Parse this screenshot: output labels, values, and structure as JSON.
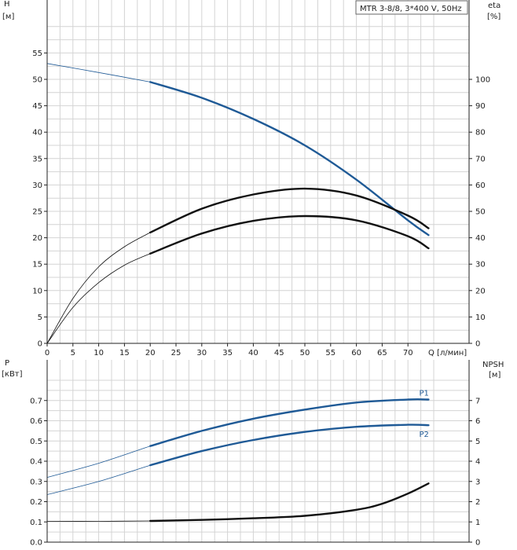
{
  "chart_data": [
    {
      "type": "line",
      "panel": "head-efficiency",
      "legend_text": "MTR 3-8/8, 3*400 V, 50Hz",
      "left_axis": {
        "label_line1": "H",
        "label_line2": "[м]",
        "ylim": [
          0,
          60
        ],
        "ticks": [
          0,
          5,
          10,
          15,
          20,
          25,
          30,
          35,
          40,
          45,
          50,
          55
        ]
      },
      "right_axis": {
        "label_line1": "eta",
        "label_line2": "[%]",
        "ylim": [
          0,
          120
        ],
        "ticks": [
          0,
          10,
          20,
          30,
          40,
          50,
          60,
          70,
          80,
          90,
          100
        ]
      },
      "x_axis": {
        "label": "Q [л/мин]",
        "xlim": [
          0,
          75
        ],
        "ticks": [
          0,
          5,
          10,
          15,
          20,
          25,
          30,
          35,
          40,
          45,
          50,
          55,
          60,
          65,
          70
        ]
      },
      "grid": true,
      "series": [
        {
          "name": "H",
          "axis": "left",
          "color": "#1f5a96",
          "thick_from": 20,
          "points": [
            [
              0,
              53
            ],
            [
              10,
              51.3
            ],
            [
              20,
              49.5
            ],
            [
              30,
              46.5
            ],
            [
              40,
              42.5
            ],
            [
              50,
              37.5
            ],
            [
              60,
              31
            ],
            [
              70,
              23.3
            ],
            [
              74,
              20.5
            ]
          ]
        },
        {
          "name": "eta",
          "axis": "left",
          "color": "#111111",
          "thick_from": 20,
          "points": [
            [
              0,
              0
            ],
            [
              5,
              8.5
            ],
            [
              10,
              14.5
            ],
            [
              15,
              18.3
            ],
            [
              20,
              21
            ],
            [
              30,
              25.5
            ],
            [
              40,
              28.2
            ],
            [
              50,
              29.3
            ],
            [
              60,
              28
            ],
            [
              70,
              24.2
            ],
            [
              74,
              21.8
            ]
          ]
        },
        {
          "name": "eta2",
          "axis": "left",
          "color": "#111111",
          "thick_from": 20,
          "points": [
            [
              0,
              0
            ],
            [
              5,
              6.8
            ],
            [
              10,
              11.5
            ],
            [
              15,
              14.8
            ],
            [
              20,
              17
            ],
            [
              30,
              20.8
            ],
            [
              40,
              23.2
            ],
            [
              50,
              24.1
            ],
            [
              60,
              23.3
            ],
            [
              70,
              20.3
            ],
            [
              74,
              18
            ]
          ]
        }
      ]
    },
    {
      "type": "line",
      "panel": "power-npsh",
      "left_axis": {
        "label_line1": "P",
        "label_line2": "[кВт]",
        "ylim": [
          0,
          0.8
        ],
        "ticks": [
          "0.0",
          "0.1",
          "0.2",
          "0.3",
          "0.4",
          "0.5",
          "0.6",
          "0.7"
        ]
      },
      "right_axis": {
        "label_line1": "NPSH",
        "label_line2": "[м]",
        "ylim": [
          0,
          8
        ],
        "ticks": [
          0,
          1,
          2,
          3,
          4,
          5,
          6,
          7
        ]
      },
      "x_axis": {
        "xlim": [
          0,
          75
        ]
      },
      "grid": true,
      "series": [
        {
          "name": "P1",
          "axis": "left",
          "color": "#1f5a96",
          "thick_from": 20,
          "points": [
            [
              0,
              0.32
            ],
            [
              10,
              0.39
            ],
            [
              20,
              0.475
            ],
            [
              30,
              0.55
            ],
            [
              40,
              0.61
            ],
            [
              50,
              0.655
            ],
            [
              60,
              0.69
            ],
            [
              70,
              0.705
            ],
            [
              74,
              0.705
            ]
          ]
        },
        {
          "name": "P2",
          "axis": "left",
          "color": "#1f5a96",
          "thick_from": 20,
          "points": [
            [
              0,
              0.235
            ],
            [
              10,
              0.3
            ],
            [
              20,
              0.38
            ],
            [
              30,
              0.45
            ],
            [
              40,
              0.505
            ],
            [
              50,
              0.545
            ],
            [
              60,
              0.57
            ],
            [
              70,
              0.58
            ],
            [
              74,
              0.578
            ]
          ]
        },
        {
          "name": "NPSH",
          "axis": "left",
          "color": "#111111",
          "thick_from": 20,
          "points": [
            [
              0,
              0.103
            ],
            [
              10,
              0.103
            ],
            [
              20,
              0.105
            ],
            [
              30,
              0.11
            ],
            [
              40,
              0.118
            ],
            [
              50,
              0.13
            ],
            [
              60,
              0.16
            ],
            [
              65,
              0.19
            ],
            [
              70,
              0.24
            ],
            [
              74,
              0.29
            ]
          ]
        }
      ]
    }
  ]
}
